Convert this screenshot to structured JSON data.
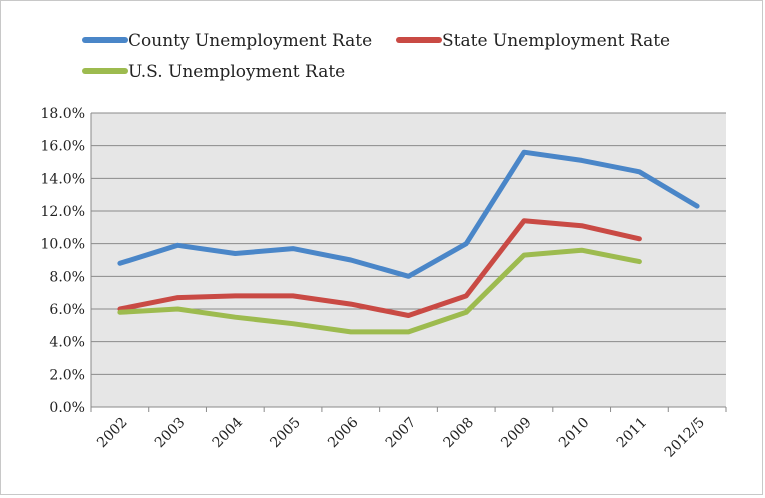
{
  "chart_data": {
    "type": "line",
    "title": "",
    "xlabel": "",
    "ylabel": "",
    "categories": [
      "2002",
      "2003",
      "2004",
      "2005",
      "2006",
      "2007",
      "2008",
      "2009",
      "2010",
      "2011",
      "2012/5"
    ],
    "ylim": [
      0,
      18
    ],
    "yticks": [
      0,
      2,
      4,
      6,
      8,
      10,
      12,
      14,
      16,
      18
    ],
    "ytick_labels": [
      "0.0%",
      "2.0%",
      "4.0%",
      "6.0%",
      "8.0%",
      "10.0%",
      "12.0%",
      "14.0%",
      "16.0%",
      "18.0%"
    ],
    "grid": true,
    "legend_position": "top",
    "series": [
      {
        "name": "County Unemployment Rate",
        "color": "#4a86c8",
        "values": [
          8.8,
          9.9,
          9.4,
          9.7,
          9.0,
          8.0,
          10.0,
          15.6,
          15.1,
          14.4,
          12.3
        ]
      },
      {
        "name": "State Unemployment Rate",
        "color": "#c94a44",
        "values": [
          6.0,
          6.7,
          6.8,
          6.8,
          6.3,
          5.6,
          6.8,
          11.4,
          11.1,
          10.3,
          null
        ]
      },
      {
        "name": "U.S. Unemployment Rate",
        "color": "#9dbb4f",
        "values": [
          5.8,
          6.0,
          5.5,
          5.1,
          4.6,
          4.6,
          5.8,
          9.3,
          9.6,
          8.9,
          null
        ]
      }
    ]
  }
}
